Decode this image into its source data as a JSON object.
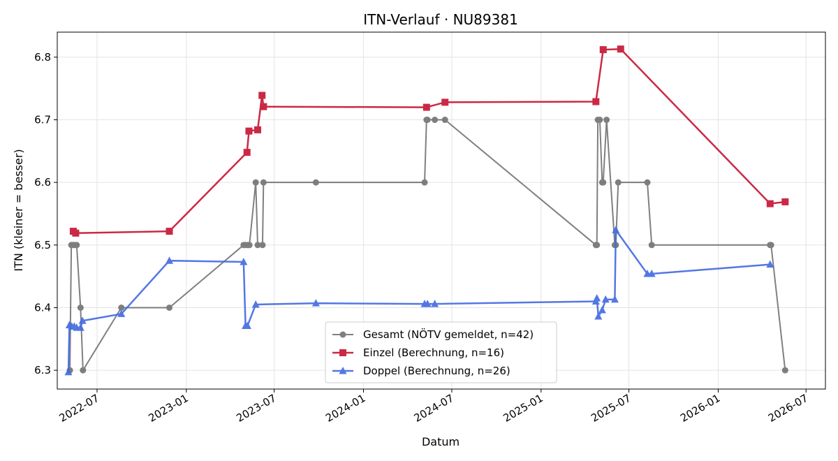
{
  "chart_data": {
    "type": "line",
    "title": "ITN-Verlauf · NU89381",
    "xlabel": "Datum",
    "ylabel": "ITN  (kleiner = besser)",
    "xlim": [
      "2022-04-10",
      "2026-08-10"
    ],
    "ylim": [
      6.27,
      6.84
    ],
    "x_ticks": [
      "2022-07",
      "2023-01",
      "2023-07",
      "2024-01",
      "2024-07",
      "2025-01",
      "2025-07",
      "2026-01",
      "2026-07"
    ],
    "y_ticks": [
      6.3,
      6.4,
      6.5,
      6.6,
      6.7,
      6.8
    ],
    "grid": true,
    "legend_position": "lower center",
    "series": [
      {
        "name": "Gesamt (NÖTV gemeldet, n=42)",
        "color": "#555555",
        "marker": "circle",
        "points": [
          [
            "2022-05-06",
            6.3
          ],
          [
            "2022-05-09",
            6.5
          ],
          [
            "2022-05-13",
            6.5
          ],
          [
            "2022-05-16",
            6.5
          ],
          [
            "2022-05-20",
            6.5
          ],
          [
            "2022-05-28",
            6.4
          ],
          [
            "2022-06-02",
            6.3
          ],
          [
            "2022-08-20",
            6.4
          ],
          [
            "2022-11-27",
            6.4
          ],
          [
            "2023-04-29",
            6.5
          ],
          [
            "2023-05-03",
            6.5
          ],
          [
            "2023-05-08",
            6.5
          ],
          [
            "2023-05-11",
            6.5
          ],
          [
            "2023-05-24",
            6.6
          ],
          [
            "2023-05-28",
            6.5
          ],
          [
            "2023-06-07",
            6.5
          ],
          [
            "2023-06-09",
            6.6
          ],
          [
            "2023-09-25",
            6.6
          ],
          [
            "2024-05-06",
            6.6
          ],
          [
            "2024-05-10",
            6.7
          ],
          [
            "2024-05-12",
            6.7
          ],
          [
            "2024-05-27",
            6.7
          ],
          [
            "2024-06-17",
            6.7
          ],
          [
            "2025-04-24",
            6.5
          ],
          [
            "2025-04-26",
            6.5
          ],
          [
            "2025-04-28",
            6.7
          ],
          [
            "2025-05-02",
            6.7
          ],
          [
            "2025-05-07",
            6.6
          ],
          [
            "2025-05-09",
            6.6
          ],
          [
            "2025-05-16",
            6.7
          ],
          [
            "2025-06-02",
            6.5
          ],
          [
            "2025-06-04",
            6.5
          ],
          [
            "2025-06-09",
            6.6
          ],
          [
            "2025-08-08",
            6.6
          ],
          [
            "2025-08-17",
            6.5
          ],
          [
            "2026-04-18",
            6.5
          ],
          [
            "2026-04-20",
            6.5
          ],
          [
            "2026-05-19",
            6.3
          ]
        ]
      },
      {
        "name": "Einzel (Berechnung, n=16)",
        "color": "#c81e3c",
        "marker": "square",
        "points": [
          [
            "2022-05-13",
            6.522
          ],
          [
            "2022-05-18",
            6.519
          ],
          [
            "2022-11-27",
            6.522
          ],
          [
            "2023-05-06",
            6.648
          ],
          [
            "2023-05-10",
            6.682
          ],
          [
            "2023-05-28",
            6.684
          ],
          [
            "2023-06-06",
            6.739
          ],
          [
            "2023-06-09",
            6.721
          ],
          [
            "2024-05-10",
            6.72
          ],
          [
            "2024-06-17",
            6.728
          ],
          [
            "2025-04-24",
            6.729
          ],
          [
            "2025-05-09",
            6.812
          ],
          [
            "2025-06-14",
            6.813
          ],
          [
            "2026-04-18",
            6.566
          ],
          [
            "2026-05-19",
            6.569
          ]
        ]
      },
      {
        "name": "Doppel (Berechnung, n=26)",
        "color": "#4169e1",
        "marker": "triangle",
        "points": [
          [
            "2022-05-03",
            6.297
          ],
          [
            "2022-05-05",
            6.372
          ],
          [
            "2022-05-10",
            6.37
          ],
          [
            "2022-05-15",
            6.37
          ],
          [
            "2022-05-20",
            6.368
          ],
          [
            "2022-05-28",
            6.368
          ],
          [
            "2022-06-01",
            6.379
          ],
          [
            "2022-08-20",
            6.39
          ],
          [
            "2022-11-27",
            6.475
          ],
          [
            "2023-04-29",
            6.473
          ],
          [
            "2023-05-03",
            6.371
          ],
          [
            "2023-05-07",
            6.371
          ],
          [
            "2023-05-24",
            6.405
          ],
          [
            "2023-09-25",
            6.407
          ],
          [
            "2024-05-06",
            6.406
          ],
          [
            "2024-05-12",
            6.406
          ],
          [
            "2024-05-27",
            6.406
          ],
          [
            "2025-04-24",
            6.41
          ],
          [
            "2025-04-26",
            6.415
          ],
          [
            "2025-04-29",
            6.386
          ],
          [
            "2025-05-07",
            6.396
          ],
          [
            "2025-05-14",
            6.413
          ],
          [
            "2025-06-02",
            6.413
          ],
          [
            "2025-06-04",
            6.524
          ],
          [
            "2025-08-08",
            6.454
          ],
          [
            "2025-08-17",
            6.454
          ],
          [
            "2026-04-18",
            6.469
          ]
        ]
      }
    ]
  }
}
